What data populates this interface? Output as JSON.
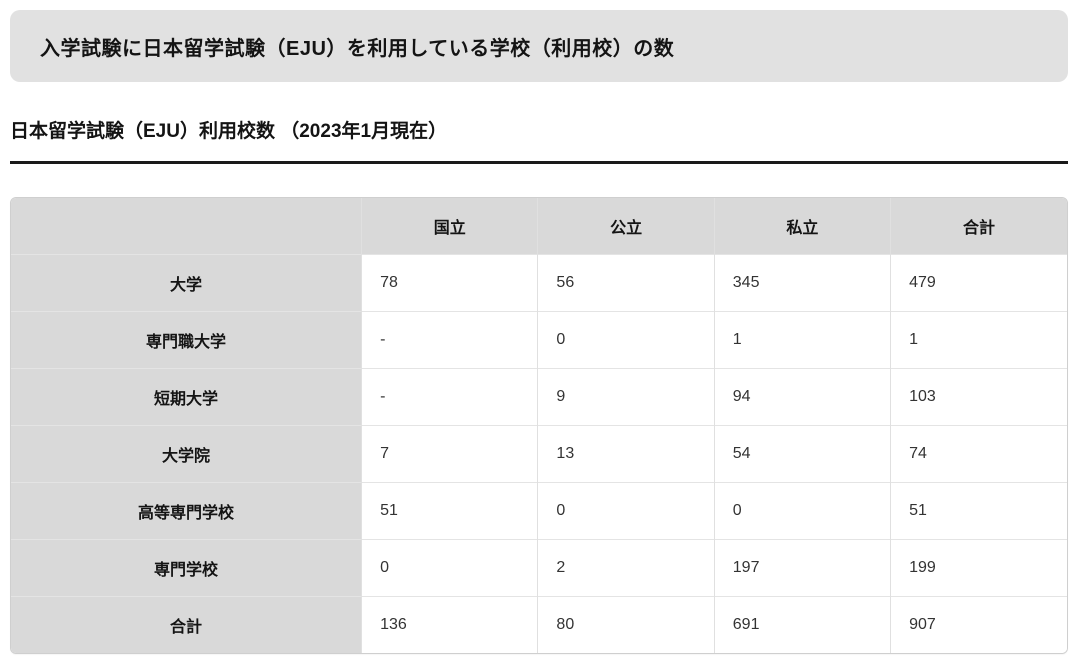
{
  "banner": {
    "title": "入学試験に日本留学試験（EJU）を利用している学校（利用校）の数"
  },
  "section": {
    "subtitle": "日本留学試験（EJU）利用校数 （2023年1月現在）"
  },
  "table": {
    "column_headers": [
      "",
      "国立",
      "公立",
      "私立",
      "合計"
    ],
    "rows": [
      {
        "label": "大学",
        "values": [
          "78",
          "56",
          "345",
          "479"
        ]
      },
      {
        "label": "専門職大学",
        "values": [
          "-",
          "0",
          "1",
          "1"
        ]
      },
      {
        "label": "短期大学",
        "values": [
          "-",
          "9",
          "94",
          "103"
        ]
      },
      {
        "label": "大学院",
        "values": [
          "7",
          "13",
          "54",
          "74"
        ]
      },
      {
        "label": "高等専門学校",
        "values": [
          "51",
          "0",
          "0",
          "51"
        ]
      },
      {
        "label": "専門学校",
        "values": [
          "0",
          "2",
          "197",
          "199"
        ]
      },
      {
        "label": "合計",
        "values": [
          "136",
          "80",
          "691",
          "907"
        ]
      }
    ]
  },
  "colors": {
    "banner_background": "#e1e1e1",
    "table_header_background": "#d9d9d9",
    "table_border_outer": "#cfcfcf",
    "table_border_inner": "#e4e4e4",
    "rule_color": "#1a1a1a",
    "text_primary": "#141414",
    "text_values": "#333333",
    "page_background": "#ffffff"
  }
}
